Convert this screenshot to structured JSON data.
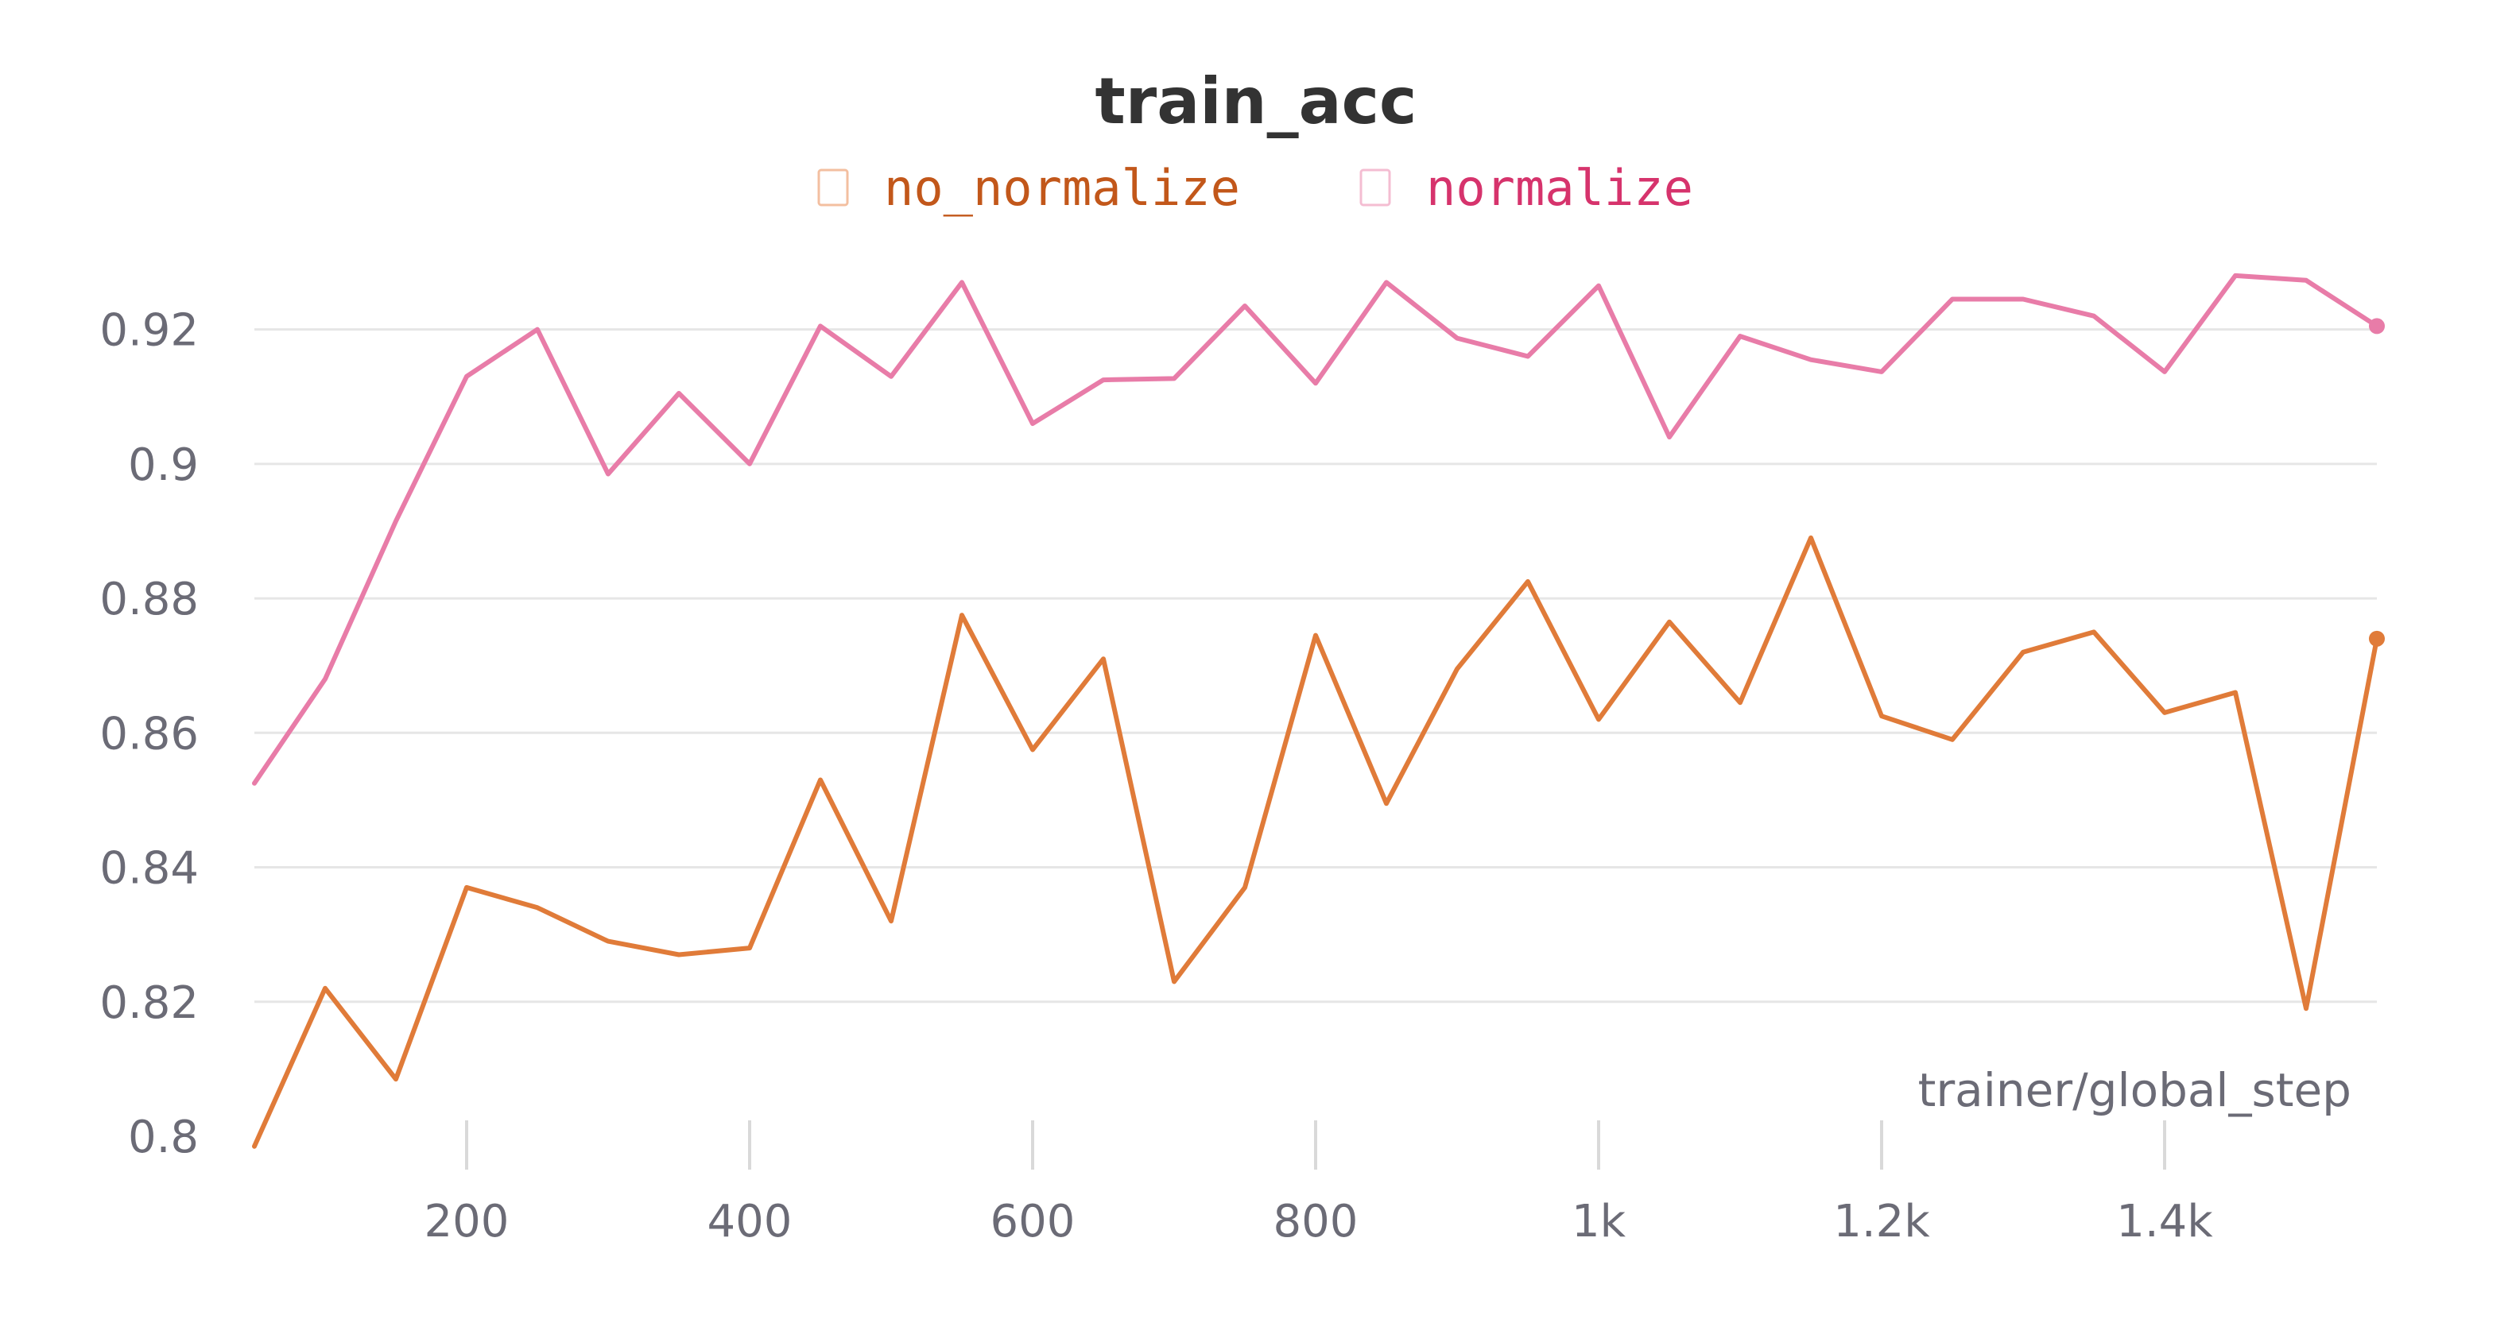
{
  "chart_data": {
    "type": "line",
    "title": "train_acc",
    "xlabel": "trainer/global_step",
    "ylabel": "",
    "xlim": [
      50,
      1550
    ],
    "ylim": [
      0.8,
      0.93
    ],
    "x_ticks": [
      {
        "value": 200,
        "label": "200"
      },
      {
        "value": 400,
        "label": "400"
      },
      {
        "value": 600,
        "label": "600"
      },
      {
        "value": 800,
        "label": "800"
      },
      {
        "value": 1000,
        "label": "1k"
      },
      {
        "value": 1200,
        "label": "1.2k"
      },
      {
        "value": 1400,
        "label": "1.4k"
      }
    ],
    "y_ticks": [
      {
        "value": 0.8,
        "label": "0.8"
      },
      {
        "value": 0.82,
        "label": "0.82"
      },
      {
        "value": 0.84,
        "label": "0.84"
      },
      {
        "value": 0.86,
        "label": "0.86"
      },
      {
        "value": 0.88,
        "label": "0.88"
      },
      {
        "value": 0.9,
        "label": "0.9"
      },
      {
        "value": 0.92,
        "label": "0.92"
      }
    ],
    "grid": true,
    "legend_position": "top-center",
    "x": [
      50,
      100,
      150,
      200,
      250,
      300,
      350,
      400,
      450,
      500,
      550,
      600,
      650,
      700,
      750,
      800,
      850,
      900,
      950,
      1000,
      1050,
      1100,
      1150,
      1200,
      1250,
      1300,
      1350,
      1400,
      1450,
      1500,
      1550
    ],
    "series": [
      {
        "name": "no_normalize",
        "color": "#e07b39",
        "legend_text_color": "#c2571a",
        "values": [
          0.7985,
          0.822,
          0.8085,
          0.837,
          0.834,
          0.829,
          0.827,
          0.828,
          0.853,
          0.832,
          0.8775,
          0.8575,
          0.871,
          0.823,
          0.837,
          0.8745,
          0.8495,
          0.8695,
          0.8825,
          0.862,
          0.8765,
          0.8645,
          0.889,
          0.8625,
          0.859,
          0.872,
          0.875,
          0.863,
          0.866,
          0.819,
          0.874
        ]
      },
      {
        "name": "normalize",
        "color": "#e87ca8",
        "legend_text_color": "#d6336c",
        "values": [
          0.8525,
          0.868,
          0.8915,
          0.913,
          0.92,
          0.8985,
          0.9105,
          0.9,
          0.9205,
          0.913,
          0.927,
          0.906,
          0.9125,
          0.9127,
          0.9235,
          0.912,
          0.927,
          0.9187,
          0.916,
          0.9265,
          0.904,
          0.919,
          0.9155,
          0.9137,
          0.9245,
          0.9245,
          0.922,
          0.9137,
          0.928,
          0.9273,
          0.9205
        ]
      }
    ]
  }
}
